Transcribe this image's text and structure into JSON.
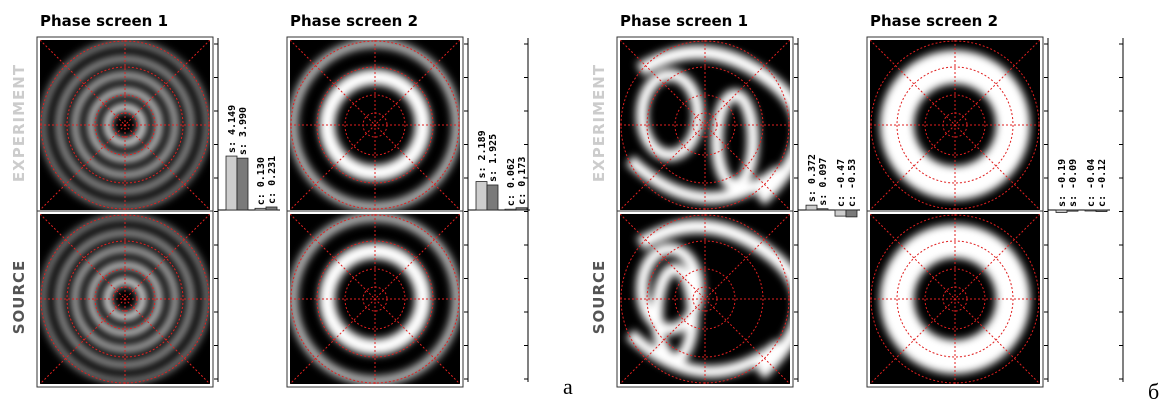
{
  "panels": [
    {
      "label": "а",
      "screen_titles": [
        "Phase screen 1",
        "Phase screen 2"
      ],
      "row_labels": [
        "EXPERIMENT",
        "SOURCE"
      ],
      "screens": [
        {
          "values": [
            4.149,
            3.99,
            0.13,
            0.231
          ],
          "value_labels": [
            "s: 4.149",
            "s: 3.990",
            "c: 0.130",
            "c: 0.231"
          ]
        },
        {
          "values": [
            2.189,
            1.925,
            0.062,
            0.173
          ],
          "value_labels": [
            "s: 2.189",
            "s: 1.925",
            "c: 0.062",
            "c: 0.173"
          ]
        }
      ]
    },
    {
      "label": "б",
      "screen_titles": [
        "Phase screen 1",
        "Phase screen 2"
      ],
      "row_labels": [
        "EXPERIMENT",
        "SOURCE"
      ],
      "screens": [
        {
          "values": [
            0.372,
            0.097,
            -0.47,
            -0.53
          ],
          "value_labels": [
            "s: 0.372",
            "s: 0.097",
            "c: -0.47",
            "c: -0.53"
          ]
        },
        {
          "values": [
            -0.19,
            -0.09,
            -0.04,
            -0.12
          ],
          "value_labels": [
            "s: -0.19",
            "s: -0.09",
            "c: -0.04",
            "c: -0.12"
          ]
        }
      ]
    }
  ]
}
